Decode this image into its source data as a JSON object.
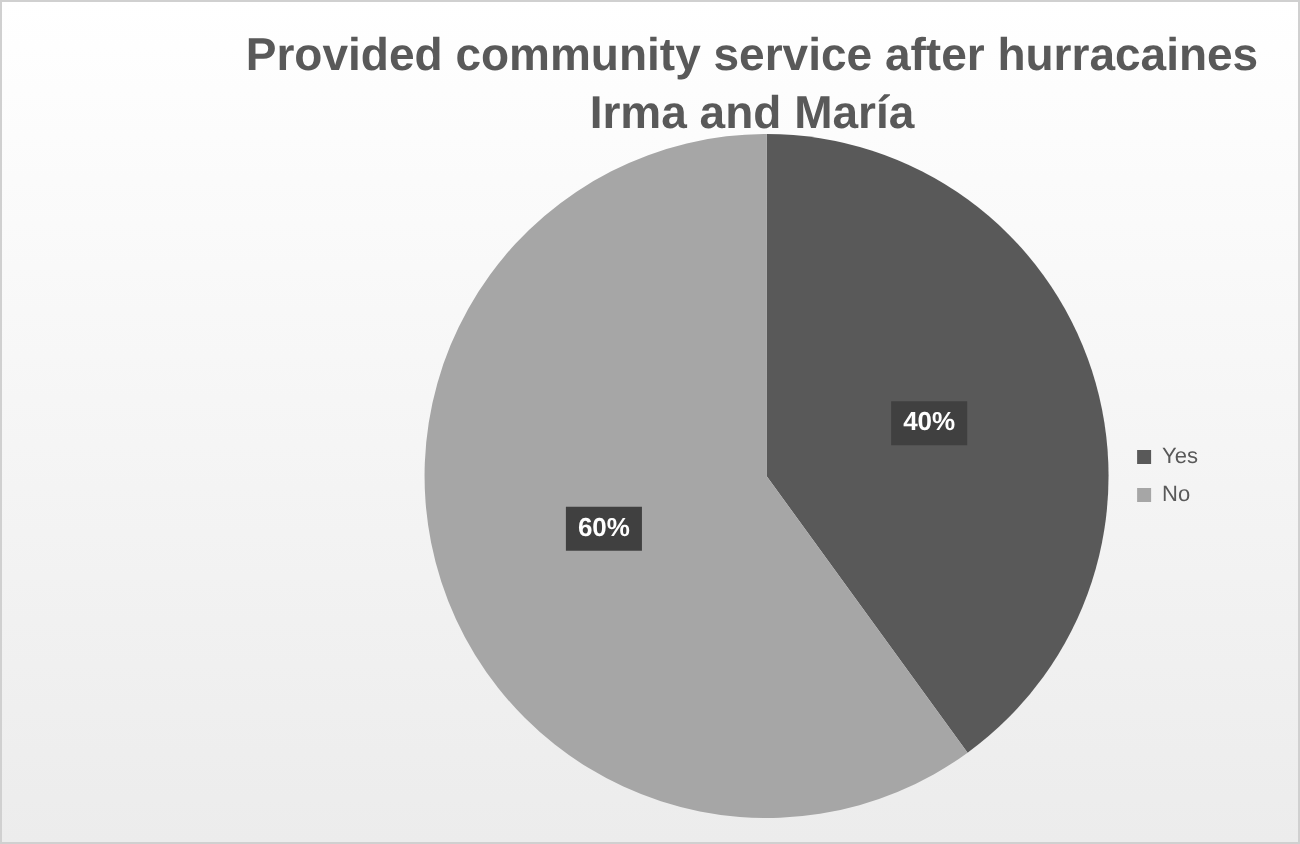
{
  "chart_data": {
    "type": "pie",
    "title": "Provided community service after hurracaines Irma and María",
    "categories": [
      "Yes",
      "No"
    ],
    "values": [
      40,
      60
    ],
    "colors": [
      "#595959",
      "#a6a6a6"
    ],
    "value_labels": [
      "40%",
      "60%"
    ],
    "legend": "right"
  }
}
